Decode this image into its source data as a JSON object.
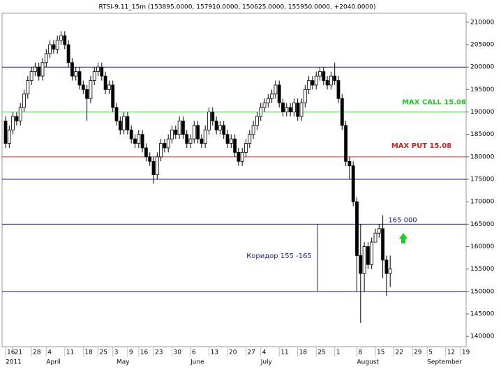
{
  "chart_data": {
    "type": "candlestick",
    "title": "RTSI-9.11_15m (153895.0000, 157910.0000, 150625.0000, 155950.0000, +2040.0000)",
    "open": [
      188000,
      183000,
      186000,
      189000,
      188000,
      191000,
      194000,
      197000,
      199000,
      200000,
      198000,
      201000,
      203000,
      205000,
      204000,
      206000,
      207000,
      205000,
      201000,
      198000,
      199000,
      196000,
      195000,
      193000,
      197000,
      199000,
      200000,
      198000,
      195000,
      196000,
      191000,
      188000,
      186000,
      189000,
      186000,
      184000,
      183000,
      185000,
      182000,
      180000,
      179000,
      176000,
      180000,
      183000,
      182000,
      184000,
      186000,
      185000,
      188000,
      185000,
      183000,
      184000,
      187000,
      184000,
      183000,
      186000,
      190000,
      188000,
      186000,
      187000,
      185000,
      183000,
      184000,
      181000,
      179000,
      181000,
      183000,
      185000,
      187000,
      189000,
      191000,
      192000,
      193000,
      194000,
      196000,
      192000,
      190000,
      191000,
      190000,
      192000,
      189000,
      192000,
      195000,
      197000,
      196000,
      198000,
      199000,
      197000,
      196000,
      198000,
      197000,
      193000,
      187000,
      179000,
      178000,
      170000,
      158000,
      154000,
      160000,
      156000,
      161000,
      163000,
      164000,
      157000,
      154000
    ],
    "high": [
      189000,
      187000,
      190000,
      190000,
      192000,
      195000,
      198000,
      200000,
      201000,
      201000,
      202000,
      204000,
      206000,
      206000,
      207000,
      208000,
      208000,
      206000,
      202000,
      200000,
      200000,
      197000,
      196000,
      198000,
      200000,
      201000,
      201000,
      199000,
      197000,
      197000,
      192000,
      189000,
      190000,
      190000,
      187000,
      185000,
      186000,
      186000,
      183000,
      181000,
      180000,
      181000,
      184000,
      184000,
      185000,
      187000,
      187000,
      189000,
      189000,
      186000,
      185000,
      188000,
      188000,
      185000,
      187000,
      191000,
      191000,
      189000,
      188000,
      188000,
      186000,
      185000,
      185000,
      182000,
      182000,
      184000,
      186000,
      188000,
      190000,
      192000,
      193000,
      194000,
      195000,
      197000,
      197000,
      193000,
      192000,
      192000,
      193000,
      193000,
      193000,
      196000,
      198000,
      198000,
      199000,
      200000,
      200000,
      198000,
      199000,
      201000,
      198000,
      194000,
      188000,
      180000,
      179000,
      171000,
      165000,
      161000,
      161000,
      162000,
      164000,
      165000,
      167000,
      158000,
      158000
    ],
    "low": [
      182000,
      182000,
      185000,
      187000,
      187000,
      190000,
      193000,
      196000,
      198000,
      197000,
      197000,
      200000,
      202000,
      203000,
      203000,
      205000,
      204000,
      200000,
      197000,
      197000,
      195000,
      194000,
      188000,
      192000,
      196000,
      198000,
      197000,
      194000,
      194000,
      190000,
      187000,
      185000,
      185000,
      185000,
      183000,
      182000,
      182000,
      181000,
      179000,
      178000,
      174000,
      175000,
      179000,
      181000,
      181000,
      183000,
      184000,
      184000,
      184000,
      182000,
      182000,
      183000,
      183000,
      182000,
      182000,
      185000,
      187000,
      185000,
      185000,
      184000,
      182000,
      182000,
      180000,
      178000,
      178000,
      180000,
      182000,
      184000,
      186000,
      188000,
      190000,
      191000,
      192000,
      193000,
      191000,
      189000,
      189000,
      189000,
      189000,
      188000,
      188000,
      191000,
      194000,
      195000,
      195000,
      197000,
      196000,
      195000,
      195000,
      196000,
      192000,
      186000,
      178000,
      175000,
      169000,
      150000,
      143000,
      150000,
      155000,
      155000,
      161000,
      162000,
      153000,
      149000,
      151000
    ],
    "close": [
      183000,
      186000,
      189000,
      188000,
      191000,
      194000,
      197000,
      199000,
      200000,
      198000,
      201000,
      203000,
      205000,
      204000,
      206000,
      207000,
      205000,
      201000,
      198000,
      199000,
      196000,
      195000,
      193000,
      197000,
      199000,
      200000,
      198000,
      195000,
      196000,
      191000,
      188000,
      186000,
      189000,
      186000,
      184000,
      183000,
      185000,
      182000,
      180000,
      179000,
      176000,
      180000,
      183000,
      182000,
      184000,
      186000,
      185000,
      188000,
      185000,
      183000,
      184000,
      187000,
      184000,
      183000,
      186000,
      190000,
      188000,
      186000,
      187000,
      185000,
      183000,
      184000,
      181000,
      179000,
      181000,
      183000,
      185000,
      187000,
      189000,
      191000,
      192000,
      193000,
      194000,
      196000,
      192000,
      190000,
      191000,
      190000,
      192000,
      189000,
      192000,
      195000,
      197000,
      196000,
      198000,
      199000,
      197000,
      196000,
      198000,
      197000,
      193000,
      187000,
      179000,
      178000,
      170000,
      158000,
      154000,
      160000,
      156000,
      161000,
      163000,
      164000,
      157000,
      154000,
      155000
    ],
    "ylim": [
      137700,
      212000
    ],
    "yticks": [
      140000,
      145000,
      150000,
      155000,
      160000,
      165000,
      170000,
      175000,
      180000,
      185000,
      190000,
      195000,
      200000,
      205000,
      210000
    ],
    "xticks": [
      {
        "value": 0,
        "label": "16"
      },
      {
        "value": 2,
        "label": "21"
      },
      {
        "value": 7,
        "label": "28"
      },
      {
        "value": 11,
        "label": "4"
      },
      {
        "value": 16,
        "label": "11"
      },
      {
        "value": 21,
        "label": "18"
      },
      {
        "value": 25,
        "label": "25"
      },
      {
        "value": 29,
        "label": "3"
      },
      {
        "value": 33,
        "label": "9"
      },
      {
        "value": 36,
        "label": "16"
      },
      {
        "value": 40,
        "label": "23"
      },
      {
        "value": 45,
        "label": "30"
      },
      {
        "value": 50,
        "label": "6"
      },
      {
        "value": 55,
        "label": "13"
      },
      {
        "value": 60,
        "label": "20"
      },
      {
        "value": 65,
        "label": "27"
      },
      {
        "value": 69,
        "label": "4"
      },
      {
        "value": 74,
        "label": "11"
      },
      {
        "value": 79,
        "label": "18"
      },
      {
        "value": 84,
        "label": "25"
      },
      {
        "value": 89,
        "label": "1"
      },
      {
        "value": 95,
        "label": "8"
      },
      {
        "value": 100,
        "label": "15"
      },
      {
        "value": 105,
        "label": "22"
      },
      {
        "value": 110,
        "label": "29"
      },
      {
        "value": 114,
        "label": "5"
      },
      {
        "value": 119,
        "label": "12"
      },
      {
        "value": 123,
        "label": "19"
      }
    ],
    "months": [
      {
        "value": 0,
        "label": "2011"
      },
      {
        "value": 11,
        "label": "April"
      },
      {
        "value": 30,
        "label": "May"
      },
      {
        "value": 50,
        "label": "June"
      },
      {
        "value": 69,
        "label": "July"
      },
      {
        "value": 95,
        "label": "August"
      },
      {
        "value": 114,
        "label": "September"
      }
    ],
    "levels": [
      {
        "value": 200000,
        "color": "#1a1a8c"
      },
      {
        "value": 190000,
        "color": "#33dd33"
      },
      {
        "value": 180000,
        "color": "#d03030"
      },
      {
        "value": 175000,
        "color": "#1a1a8c"
      },
      {
        "value": 165000,
        "color": "#1a1a8c"
      },
      {
        "value": 150000,
        "color": "#1a1a8c"
      }
    ],
    "annotations": [
      {
        "text": "MAX CALL 15.08",
        "color": "#22cc22"
      },
      {
        "text": "MAX PUT 15.08",
        "color": "#cc2020"
      },
      {
        "text": "165 000",
        "color": "#1a1a8c"
      },
      {
        "text": "Коридор 155 -165",
        "color": "#1a1a8c"
      }
    ]
  }
}
